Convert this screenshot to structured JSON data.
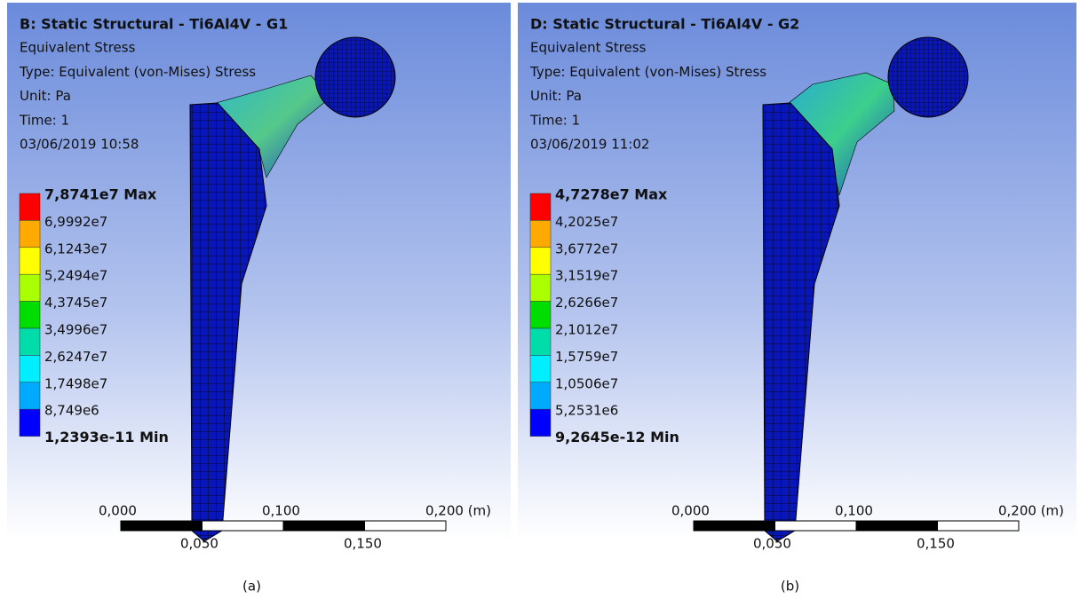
{
  "panels": [
    {
      "header": {
        "title": "B: Static Structural - Ti6Al4V - G1",
        "lines": [
          "Equivalent Stress",
          "Type: Equivalent (von-Mises) Stress",
          "Unit: Pa",
          "Time: 1",
          "03/06/2019 10:58"
        ]
      },
      "legend": [
        "7,8741e7 Max",
        "6,9992e7",
        "6,1243e7",
        "5,2494e7",
        "4,3745e7",
        "3,4996e7",
        "2,6247e7",
        "1,7498e7",
        "8,749e6",
        "1,2393e-11 Min"
      ],
      "scale": {
        "top": [
          "0,000",
          "0,100",
          "0,200 (m)"
        ],
        "bottom": [
          "0,050",
          "0,150"
        ]
      },
      "caption": "(a)"
    },
    {
      "header": {
        "title": "D: Static Structural - Ti6Al4V - G2",
        "lines": [
          "Equivalent Stress",
          "Type: Equivalent (von-Mises) Stress",
          "Unit: Pa",
          "Time: 1",
          "03/06/2019 11:02"
        ]
      },
      "legend": [
        "4,7278e7 Max",
        "4,2025e7",
        "3,6772e7",
        "3,1519e7",
        "2,6266e7",
        "2,1012e7",
        "1,5759e7",
        "1,0506e7",
        "5,2531e6",
        "9,2645e-12 Min"
      ],
      "scale": {
        "top": [
          "0,000",
          "0,100",
          "0,200 (m)"
        ],
        "bottom": [
          "0,050",
          "0,150"
        ]
      },
      "caption": "(b)"
    }
  ]
}
